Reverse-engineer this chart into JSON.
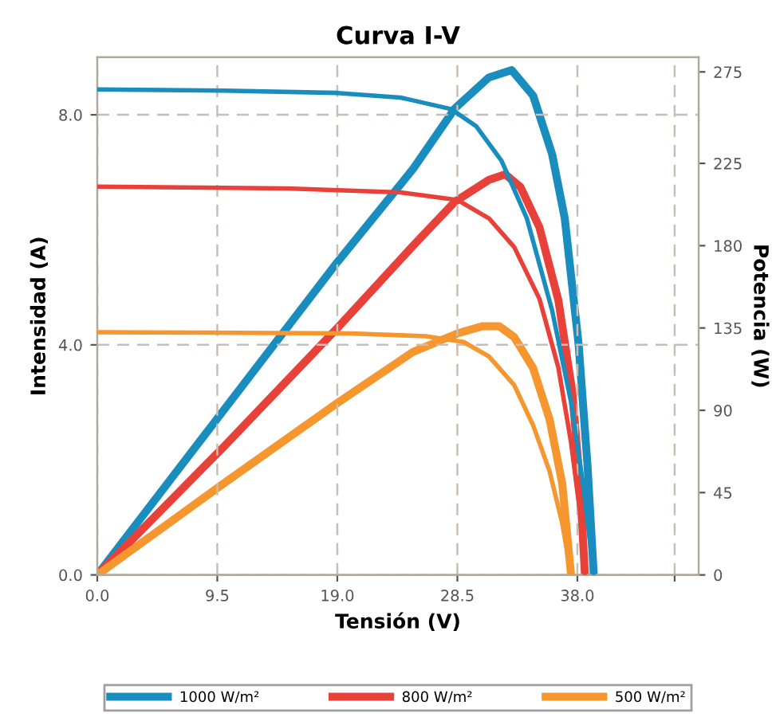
{
  "chart_data": {
    "type": "line",
    "title": "Curva I-V",
    "xlabel": "Tensión (V)",
    "ylabel": "Intensidad (A)",
    "y2label": "Potencia (W)",
    "xlim": [
      0,
      47.6
    ],
    "xticks": [
      {
        "value": 0,
        "label": "0.0"
      },
      {
        "value": 9.5,
        "label": "9.5"
      },
      {
        "value": 19,
        "label": "19.0"
      },
      {
        "value": 28.5,
        "label": "28.5"
      },
      {
        "value": 38,
        "label": "38.0"
      },
      {
        "value": 45.7,
        "label": null
      }
    ],
    "ylim": [
      0,
      9.0
    ],
    "yticks": [
      {
        "value": 0,
        "label": "0.0"
      },
      {
        "value": 4,
        "label": "4.0"
      },
      {
        "value": 8,
        "label": "8.0"
      }
    ],
    "y2lim": [
      0,
      283
    ],
    "y2ticks": [
      0,
      45,
      90,
      135,
      180,
      225,
      275
    ],
    "grid": true,
    "legend": "bottom",
    "line_style": "solid",
    "marker": "none",
    "series": [
      {
        "name": "1000 W/m²",
        "color": "#1a8dbf",
        "axis": "y",
        "x": [
          0,
          10,
          19,
          24,
          28,
          30,
          32,
          34,
          36,
          37.5,
          38.5,
          39.3
        ],
        "values": [
          8.44,
          8.42,
          8.38,
          8.3,
          8.1,
          7.8,
          7.2,
          6.2,
          4.6,
          3.0,
          1.5,
          0
        ]
      },
      {
        "color": "#1a8dbf",
        "axis": "y2",
        "x": [
          0,
          10,
          19,
          25,
          28.3,
          31,
          32.8,
          34.5,
          36,
          37,
          38.1,
          38.8,
          39.3
        ],
        "values": [
          0,
          90,
          171,
          222,
          255,
          272,
          276,
          262,
          230,
          195,
          126,
          60,
          0
        ]
      },
      {
        "name": "800 W/m²",
        "color": "#e8413a",
        "axis": "y",
        "x": [
          0,
          15,
          24,
          28.5,
          31,
          33,
          35,
          36.5,
          37.5,
          38.2,
          38.6
        ],
        "values": [
          6.75,
          6.72,
          6.65,
          6.52,
          6.2,
          5.7,
          4.8,
          3.6,
          2.3,
          1.1,
          0
        ]
      },
      {
        "color": "#e8413a",
        "axis": "y2",
        "x": [
          0,
          10,
          19,
          25,
          28.3,
          31,
          32.3,
          33.5,
          35,
          36.5,
          37.6,
          38.2,
          38.6
        ],
        "values": [
          0,
          70,
          135,
          180,
          204,
          216,
          219,
          212,
          190,
          150,
          100,
          50,
          0
        ]
      },
      {
        "name": "500 W/m²",
        "color": "#f5962e",
        "axis": "y",
        "x": [
          0,
          20,
          26,
          29,
          31,
          33,
          34.5,
          35.8,
          36.8,
          37.5
        ],
        "values": [
          4.22,
          4.2,
          4.15,
          4.05,
          3.8,
          3.3,
          2.6,
          1.8,
          0.9,
          0
        ]
      },
      {
        "color": "#f5962e",
        "axis": "y2",
        "x": [
          0,
          10,
          19,
          25,
          28.5,
          30.5,
          31.8,
          33,
          34.5,
          35.8,
          36.8,
          37.5
        ],
        "values": [
          0,
          50,
          94,
          122,
          132,
          136,
          136,
          130,
          113,
          85,
          50,
          0
        ]
      }
    ]
  }
}
